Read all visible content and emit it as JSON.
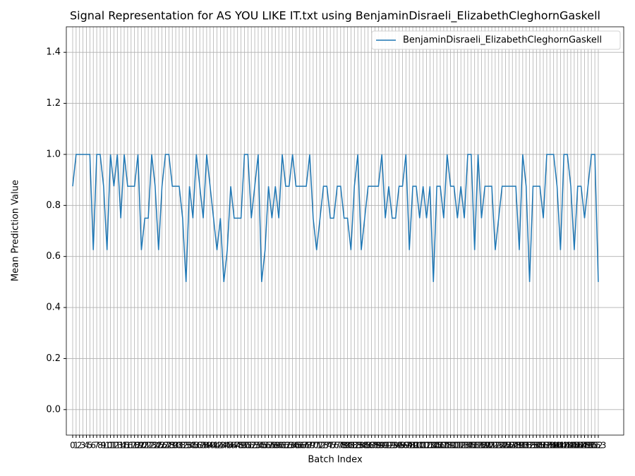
{
  "chart_data": {
    "type": "line",
    "title": "Signal Representation for AS YOU LIKE IT.txt using BenjaminDisraeli_ElizabethCleghornGaskell",
    "x_label": "Batch Index",
    "y_label": "Mean Prediction Value",
    "x": [
      0,
      1,
      2,
      3,
      4,
      5,
      6,
      7,
      8,
      9,
      10,
      11,
      12,
      13,
      14,
      15,
      16,
      17,
      18,
      19,
      20,
      21,
      22,
      23,
      24,
      25,
      26,
      27,
      28,
      29,
      30,
      31,
      32,
      33,
      34,
      35,
      36,
      37,
      38,
      39,
      40,
      41,
      42,
      43,
      44,
      45,
      46,
      47,
      48,
      49,
      50,
      51,
      52,
      53,
      54,
      55,
      56,
      57,
      58,
      59,
      60,
      61,
      62,
      63,
      64,
      65,
      66,
      67,
      68,
      69,
      70,
      71,
      72,
      73,
      74,
      75,
      76,
      77,
      78,
      79,
      80,
      81,
      82,
      83,
      84,
      85,
      86,
      87,
      88,
      89,
      90,
      91,
      92,
      93,
      94,
      95,
      96,
      97,
      98,
      99,
      100,
      101,
      102,
      103,
      104,
      105,
      106,
      107,
      108,
      109,
      110,
      111,
      112,
      113,
      114,
      115,
      116,
      117,
      118,
      119,
      120,
      121,
      122,
      123,
      124,
      125,
      126,
      127,
      128,
      129,
      130,
      131,
      132,
      133,
      134,
      135,
      136,
      137,
      138,
      139,
      140,
      141,
      142,
      143,
      144,
      145,
      146,
      147,
      148,
      149,
      150,
      151,
      152,
      153
    ],
    "series": [
      {
        "name": "BenjaminDisraeli_ElizabethCleghornGaskell",
        "color": "#1f77b4",
        "values": [
          0.875,
          1,
          1,
          1,
          1,
          1,
          0.625,
          1,
          1,
          0.875,
          0.625,
          1,
          0.875,
          1,
          0.75,
          1,
          0.875,
          0.875,
          0.875,
          1,
          0.625,
          0.75,
          0.75,
          1,
          0.875,
          0.625,
          0.875,
          1,
          1,
          0.875,
          0.875,
          0.875,
          0.75,
          0.5,
          0.875,
          0.75,
          1,
          0.875,
          0.75,
          1,
          0.875,
          0.75,
          0.625,
          0.75,
          0.5,
          0.625,
          0.875,
          0.75,
          0.75,
          0.75,
          1,
          1,
          0.75,
          0.875,
          1,
          0.5,
          0.625,
          0.875,
          0.75,
          0.875,
          0.75,
          1,
          0.875,
          0.875,
          1,
          0.875,
          0.875,
          0.875,
          0.875,
          1,
          0.75,
          0.625,
          0.75,
          0.875,
          0.875,
          0.75,
          0.75,
          0.875,
          0.875,
          0.75,
          0.75,
          0.625,
          0.875,
          1,
          0.625,
          0.75,
          0.875,
          0.875,
          0.875,
          0.875,
          1,
          0.75,
          0.875,
          0.75,
          0.75,
          0.875,
          0.875,
          1,
          0.625,
          0.875,
          0.875,
          0.75,
          0.875,
          0.75,
          0.875,
          0.5,
          0.875,
          0.875,
          0.75,
          1,
          0.875,
          0.875,
          0.75,
          0.875,
          0.75,
          1,
          1,
          0.625,
          1,
          0.75,
          0.875,
          0.875,
          0.875,
          0.625,
          0.75,
          0.875,
          0.875,
          0.875,
          0.875,
          0.875,
          0.625,
          1,
          0.875,
          0.5,
          0.875,
          0.875,
          0.875,
          0.75,
          1,
          1,
          1,
          0.875,
          0.625,
          1,
          1,
          0.875,
          0.625,
          0.875,
          0.875,
          0.75,
          0.875,
          1,
          1,
          0.5
        ]
      }
    ],
    "xlim": [
      -1.85,
      160.4
    ],
    "ylim": [
      -0.1,
      1.5
    ],
    "xticks": [
      0,
      1,
      2,
      3,
      4,
      5,
      6,
      7,
      8,
      9,
      10,
      11,
      12,
      13,
      14,
      15,
      16,
      17,
      18,
      19,
      20,
      21,
      22,
      23,
      24,
      25,
      26,
      27,
      28,
      29,
      30,
      31,
      32,
      33,
      34,
      35,
      36,
      37,
      38,
      39,
      40,
      41,
      42,
      43,
      44,
      45,
      46,
      47,
      48,
      49,
      50,
      51,
      52,
      53,
      54,
      55,
      56,
      57,
      58,
      59,
      60,
      61,
      62,
      63,
      64,
      65,
      66,
      67,
      68,
      69,
      70,
      71,
      72,
      73,
      74,
      75,
      76,
      77,
      78,
      79,
      80,
      81,
      82,
      83,
      84,
      85,
      86,
      87,
      88,
      89,
      90,
      91,
      92,
      93,
      94,
      95,
      96,
      97,
      98,
      99,
      100,
      101,
      102,
      103,
      104,
      105,
      106,
      107,
      108,
      109,
      110,
      111,
      112,
      113,
      114,
      115,
      116,
      117,
      118,
      119,
      120,
      121,
      122,
      123,
      124,
      125,
      126,
      127,
      128,
      129,
      130,
      131,
      132,
      133,
      134,
      135,
      136,
      137,
      138,
      139,
      140,
      141,
      142,
      143,
      144,
      145,
      146,
      147,
      148,
      149,
      150,
      151,
      152,
      153
    ],
    "yticks": [
      {
        "value": 0,
        "label": "0.0"
      },
      0.2,
      0.4,
      0.6,
      0.8,
      {
        "value": 1,
        "label": "1.0"
      },
      1.2,
      1.4
    ],
    "grid": true,
    "legend": "upper right"
  }
}
